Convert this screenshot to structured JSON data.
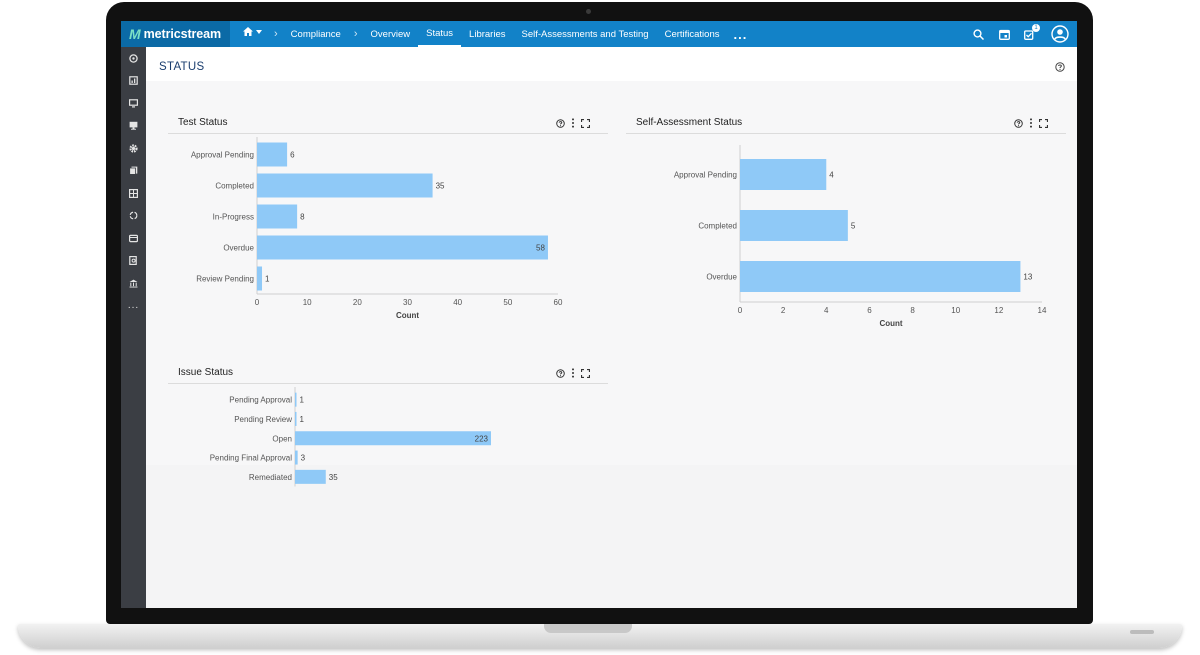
{
  "app": {
    "brand": "metricstream",
    "brand_mark": "M"
  },
  "nav": {
    "breadcrumb": "Compliance",
    "items": [
      "Overview",
      "Status",
      "Libraries",
      "Self-Assessments and Testing",
      "Certifications"
    ],
    "active": "Status",
    "more": "..."
  },
  "header": {
    "notifications_count": "1"
  },
  "page": {
    "title": "STATUS"
  },
  "sidebar": {
    "more": "..."
  },
  "panels": {
    "test_status": {
      "title": "Test Status"
    },
    "self_assessment_status": {
      "title": "Self-Assessment Status"
    },
    "issue_status": {
      "title": "Issue Status"
    }
  },
  "chart_data": [
    {
      "type": "bar",
      "orientation": "horizontal",
      "title": "Test Status",
      "categories": [
        "Approval Pending",
        "Completed",
        "In-Progress",
        "Overdue",
        "Review Pending"
      ],
      "values": [
        6,
        35,
        8,
        58,
        1
      ],
      "xlabel": "Count",
      "xticks": [
        0,
        10,
        20,
        30,
        40,
        50,
        60
      ],
      "xlim": [
        0,
        60
      ],
      "color": "#8fc9f7"
    },
    {
      "type": "bar",
      "orientation": "horizontal",
      "title": "Self-Assessment Status",
      "categories": [
        "Approval Pending",
        "Completed",
        "Overdue"
      ],
      "values": [
        4,
        5,
        13
      ],
      "xlabel": "Count",
      "xticks": [
        0,
        2,
        4,
        6,
        8,
        10,
        12,
        14
      ],
      "xlim": [
        0,
        14
      ],
      "color": "#8fc9f7"
    },
    {
      "type": "bar",
      "orientation": "horizontal",
      "title": "Issue Status",
      "categories": [
        "Pending Approval",
        "Pending Review",
        "Open",
        "Pending Final Approval",
        "Remediated"
      ],
      "values": [
        1,
        1,
        223,
        3,
        35
      ],
      "xlim": [
        0,
        223
      ],
      "color": "#8fc9f7"
    }
  ]
}
